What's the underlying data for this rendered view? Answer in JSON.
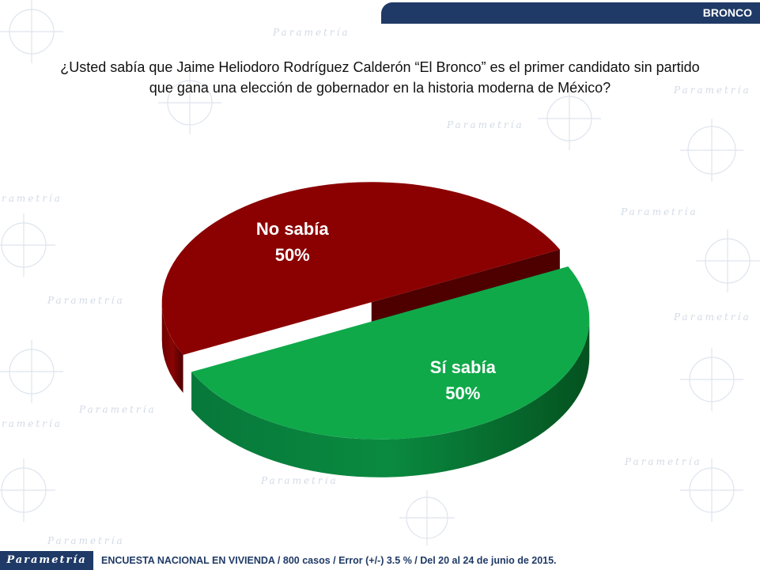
{
  "header": {
    "tag": "BRONCO"
  },
  "question": {
    "line1": "¿Usted sabía que Jaime Heliodoro Rodríguez Calderón “El Bronco” es el primer candidato sin partido",
    "line2": "que gana una elección de gobernador en la historia moderna de México?"
  },
  "chart_data": {
    "type": "pie",
    "slices": [
      {
        "label": "No sabía",
        "value": 50,
        "value_label": "50%",
        "color": "#8b0000",
        "side_color": "#5a0000"
      },
      {
        "label": "Sí sabía",
        "value": 50,
        "value_label": "50%",
        "color": "#0fa94a",
        "side_color": "#06652b"
      }
    ],
    "style": "3d-exploded"
  },
  "watermark": {
    "text": "Parametría"
  },
  "footer": {
    "logo": "Parametría",
    "note": "ENCUESTA NACIONAL EN VIVIENDA / 800 casos / Error (+/-) 3.5 % / Del 20 al 24 de junio de 2015."
  }
}
